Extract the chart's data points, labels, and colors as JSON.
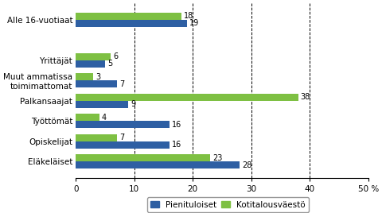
{
  "categories": [
    "Eläkeläiset",
    "Opiskelijat",
    "Työttömät",
    "Palkansaajat",
    "Muut ammatissa\ntoimimattomat",
    "Yrittäjät",
    "Alle 16-vuotiaat"
  ],
  "pienituloiset": [
    28,
    16,
    16,
    9,
    7,
    5,
    19
  ],
  "kotitalousvaesto": [
    23,
    7,
    4,
    38,
    3,
    6,
    18
  ],
  "y_positions": [
    7,
    6,
    5,
    4,
    3,
    2,
    0
  ],
  "bar_color_blue": "#2E5FA3",
  "bar_color_green": "#7EC043",
  "xlim": [
    0,
    50
  ],
  "xticks": [
    0,
    10,
    20,
    30,
    40,
    50
  ],
  "xticklabels": [
    "0",
    "10",
    "20",
    "30",
    "40",
    "50 %"
  ],
  "legend_blue": "Pienituloiset",
  "legend_green": "Kotitalousväestö",
  "bar_height": 0.35,
  "label_fontsize": 7.0,
  "tick_fontsize": 7.5
}
